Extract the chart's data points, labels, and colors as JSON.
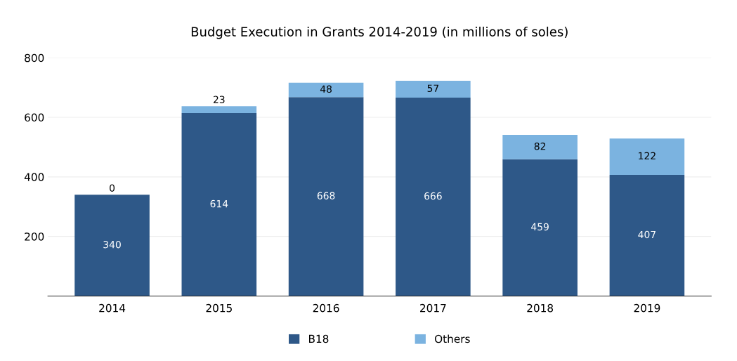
{
  "chart_data": {
    "type": "bar",
    "title": "Budget Execution in Grants 2014-2019 (in millions of soles)",
    "categories": [
      "2014",
      "2015",
      "2016",
      "2017",
      "2018",
      "2019"
    ],
    "stacked": true,
    "series": [
      {
        "name": "B18",
        "color": "#2e5888",
        "values": [
          340,
          614,
          668,
          666,
          459,
          407
        ]
      },
      {
        "name": "Others",
        "color": "#7bb3e0",
        "values": [
          0,
          23,
          48,
          57,
          82,
          122
        ]
      }
    ],
    "ylim": [
      0,
      800
    ],
    "yticks": [
      200,
      400,
      600,
      800
    ],
    "grid": "y",
    "legend": "bottom",
    "data_labels": true
  }
}
